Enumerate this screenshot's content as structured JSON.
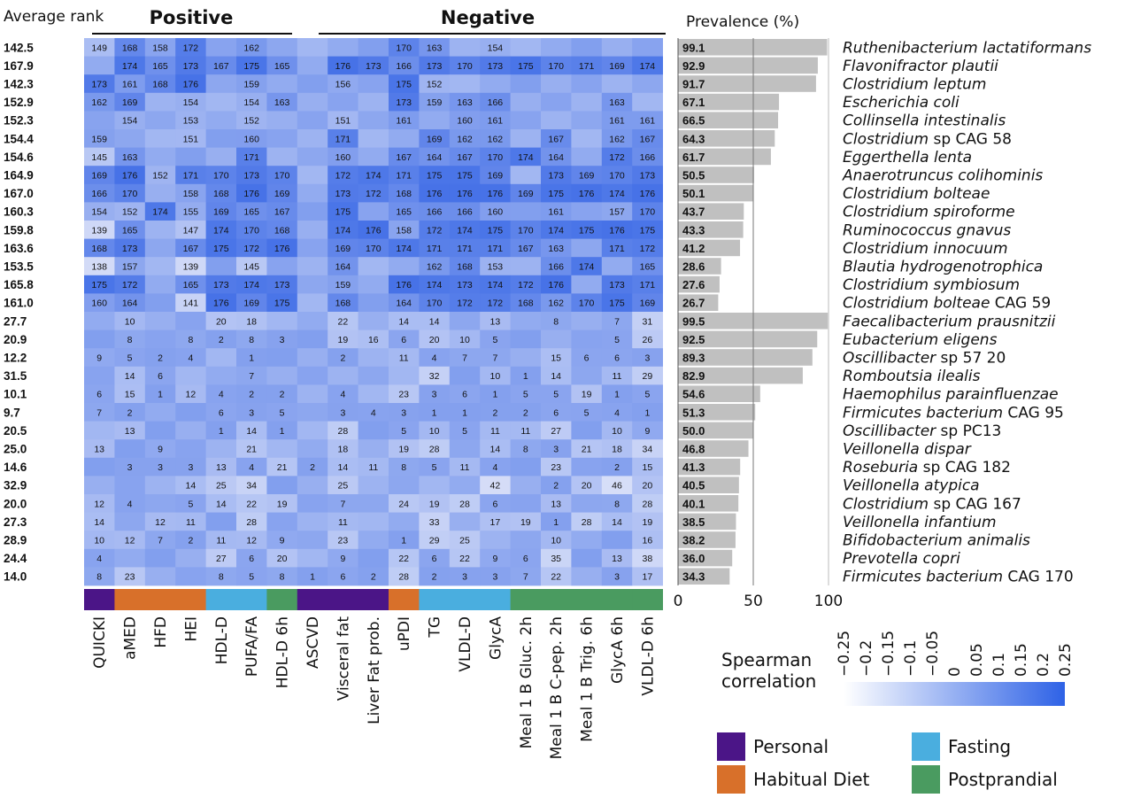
{
  "chart_data": {
    "type": "heatmap",
    "labels": {
      "average_rank": "Average rank",
      "positive": "Positive",
      "negative": "Negative",
      "prevalence": "Prevalence (%)",
      "colorbar_title_1": "Spearman",
      "colorbar_title_2": "correlation"
    },
    "columns": [
      "QUICKI",
      "aMED",
      "HFD",
      "HEI",
      "HDL-D",
      "PUFA/FA",
      "HDL-D 6h",
      "ASCVD",
      "Visceral fat",
      "Liver Fat prob.",
      "uPDI",
      "TG",
      "VLDL-D",
      "GlycA",
      "Meal 1 B Gluc. 2h",
      "Meal 1 B C-pep. 2h",
      "Meal 1 B Trig. 6h",
      "GlycA 6h",
      "VLDL-D 6h"
    ],
    "column_groups": [
      "Personal",
      "Habitual Diet",
      "Habitual Diet",
      "Habitual Diet",
      "Fasting",
      "Fasting",
      "Postprandial",
      "Personal",
      "Personal",
      "Personal",
      "Habitual Diet",
      "Fasting",
      "Fasting",
      "Fasting",
      "Postprandial",
      "Postprandial",
      "Postprandial",
      "Postprandial",
      "Postprandial"
    ],
    "group_legend": [
      {
        "name": "Personal",
        "color": "#4b1587"
      },
      {
        "name": "Habitual Diet",
        "color": "#d8702a"
      },
      {
        "name": "Fasting",
        "color": "#4aaedf"
      },
      {
        "name": "Postprandial",
        "color": "#4a9b60"
      }
    ],
    "rows": [
      {
        "species": "Ruthenibacterium lactatiformans",
        "rank": "142.5",
        "prevalence": 99.1,
        "values": [
          "149",
          "168",
          "158",
          "172",
          "",
          "162",
          "",
          "",
          "",
          "",
          "170",
          "163",
          "",
          "154",
          "",
          "",
          "",
          "",
          ""
        ]
      },
      {
        "species": "Flavonifractor plautii",
        "rank": "167.9",
        "prevalence": 92.9,
        "values": [
          "",
          "174",
          "165",
          "173",
          "167",
          "175",
          "165",
          "",
          "176",
          "173",
          "166",
          "173",
          "170",
          "173",
          "175",
          "170",
          "171",
          "169",
          "174"
        ]
      },
      {
        "species": "Clostridium leptum",
        "rank": "142.3",
        "prevalence": 91.7,
        "values": [
          "173",
          "161",
          "168",
          "176",
          "",
          "159",
          "",
          "",
          "156",
          "",
          "175",
          "152",
          "",
          "",
          "",
          "",
          "",
          "",
          ""
        ]
      },
      {
        "species": "Escherichia coli",
        "rank": "152.9",
        "prevalence": 67.1,
        "values": [
          "162",
          "169",
          "",
          "154",
          "",
          "154",
          "163",
          "",
          "",
          "",
          "173",
          "159",
          "163",
          "166",
          "",
          "",
          "",
          "163",
          ""
        ]
      },
      {
        "species": "Collinsella intestinalis",
        "rank": "152.3",
        "prevalence": 66.5,
        "values": [
          "",
          "154",
          "",
          "153",
          "",
          "152",
          "",
          "",
          "151",
          "",
          "161",
          "",
          "160",
          "161",
          "",
          "",
          "",
          "161",
          "161"
        ]
      },
      {
        "species": "Clostridium sp CAG 58",
        "rank": "154.4",
        "prevalence": 64.3,
        "values": [
          "159",
          "",
          "",
          "151",
          "",
          "160",
          "",
          "",
          "171",
          "",
          "",
          "169",
          "162",
          "162",
          "",
          "167",
          "",
          "162",
          "167"
        ]
      },
      {
        "species": "Eggerthella lenta",
        "rank": "154.6",
        "prevalence": 61.7,
        "values": [
          "145",
          "163",
          "",
          "",
          "",
          "171",
          "",
          "",
          "160",
          "",
          "167",
          "164",
          "167",
          "170",
          "174",
          "164",
          "",
          "172",
          "166"
        ]
      },
      {
        "species": "Anaerotruncus colihominis",
        "rank": "164.9",
        "prevalence": 50.5,
        "values": [
          "169",
          "176",
          "152",
          "171",
          "170",
          "173",
          "170",
          "",
          "172",
          "174",
          "171",
          "175",
          "175",
          "169",
          "",
          "173",
          "169",
          "170",
          "173"
        ]
      },
      {
        "species": "Clostridium bolteae",
        "rank": "167.0",
        "prevalence": 50.1,
        "values": [
          "166",
          "170",
          "",
          "158",
          "168",
          "176",
          "169",
          "",
          "173",
          "172",
          "168",
          "176",
          "176",
          "176",
          "169",
          "175",
          "176",
          "174",
          "176"
        ]
      },
      {
        "species": "Clostridium spiroforme",
        "rank": "160.3",
        "prevalence": 43.7,
        "values": [
          "154",
          "152",
          "174",
          "155",
          "169",
          "165",
          "167",
          "",
          "175",
          "",
          "165",
          "166",
          "166",
          "160",
          "",
          "161",
          "",
          "157",
          "170"
        ]
      },
      {
        "species": "Ruminococcus gnavus",
        "rank": "159.8",
        "prevalence": 43.3,
        "values": [
          "139",
          "165",
          "",
          "147",
          "174",
          "170",
          "168",
          "",
          "174",
          "176",
          "158",
          "172",
          "174",
          "175",
          "170",
          "174",
          "175",
          "176",
          "175"
        ]
      },
      {
        "species": "Clostridium innocuum",
        "rank": "163.6",
        "prevalence": 41.2,
        "values": [
          "168",
          "173",
          "",
          "167",
          "175",
          "172",
          "176",
          "",
          "169",
          "170",
          "174",
          "171",
          "171",
          "171",
          "167",
          "163",
          "",
          "171",
          "172"
        ]
      },
      {
        "species": "Blautia hydrogenotrophica",
        "rank": "153.5",
        "prevalence": 28.6,
        "values": [
          "138",
          "157",
          "",
          "139",
          "",
          "145",
          "",
          "",
          "164",
          "",
          "",
          "162",
          "168",
          "153",
          "",
          "166",
          "174",
          "",
          "165"
        ]
      },
      {
        "species": "Clostridium symbiosum",
        "rank": "165.8",
        "prevalence": 27.6,
        "values": [
          "175",
          "172",
          "",
          "165",
          "173",
          "174",
          "173",
          "",
          "159",
          "",
          "176",
          "174",
          "173",
          "174",
          "172",
          "176",
          "",
          "173",
          "171"
        ]
      },
      {
        "species": "Clostridium bolteae CAG 59",
        "rank": "161.0",
        "prevalence": 26.7,
        "values": [
          "160",
          "164",
          "",
          "141",
          "176",
          "169",
          "175",
          "",
          "168",
          "",
          "164",
          "170",
          "172",
          "172",
          "168",
          "162",
          "170",
          "175",
          "169"
        ]
      },
      {
        "species": "Faecalibacterium prausnitzii",
        "rank": "27.7",
        "prevalence": 99.5,
        "values": [
          "",
          "10",
          "",
          "",
          "20",
          "18",
          "",
          "",
          "22",
          "",
          "14",
          "14",
          "",
          "13",
          "",
          "8",
          "",
          "7",
          "31"
        ]
      },
      {
        "species": "Eubacterium eligens",
        "rank": "20.9",
        "prevalence": 92.5,
        "values": [
          "",
          "8",
          "",
          "8",
          "2",
          "8",
          "3",
          "",
          "19",
          "16",
          "6",
          "20",
          "10",
          "5",
          "",
          "",
          "",
          "5",
          "26"
        ]
      },
      {
        "species": "Oscillibacter sp 57 20",
        "rank": "12.2",
        "prevalence": 89.3,
        "values": [
          "9",
          "5",
          "2",
          "4",
          "",
          "1",
          "",
          "",
          "2",
          "",
          "11",
          "4",
          "7",
          "7",
          "",
          "15",
          "6",
          "6",
          "3"
        ]
      },
      {
        "species": "Romboutsia ilealis",
        "rank": "31.5",
        "prevalence": 82.9,
        "values": [
          "",
          "14",
          "6",
          "",
          "",
          "7",
          "",
          "",
          "",
          "",
          "",
          "32",
          "",
          "10",
          "1",
          "14",
          "",
          "11",
          "29"
        ]
      },
      {
        "species": "Haemophilus parainfluenzae",
        "rank": "10.1",
        "prevalence": 54.6,
        "values": [
          "6",
          "15",
          "1",
          "12",
          "4",
          "2",
          "2",
          "",
          "4",
          "",
          "23",
          "3",
          "6",
          "1",
          "5",
          "5",
          "19",
          "1",
          "5"
        ]
      },
      {
        "species": "Firmicutes bacterium CAG 95",
        "rank": "9.7",
        "prevalence": 51.3,
        "values": [
          "7",
          "2",
          "",
          "",
          "6",
          "3",
          "5",
          "",
          "3",
          "4",
          "3",
          "1",
          "1",
          "2",
          "2",
          "6",
          "5",
          "4",
          "1"
        ]
      },
      {
        "species": "Oscillibacter sp PC13",
        "rank": "20.5",
        "prevalence": 50.0,
        "values": [
          "",
          "13",
          "",
          "",
          "1",
          "14",
          "1",
          "",
          "28",
          "",
          "5",
          "10",
          "5",
          "11",
          "11",
          "27",
          "",
          "10",
          "9"
        ]
      },
      {
        "species": "Veillonella dispar",
        "rank": "25.0",
        "prevalence": 46.8,
        "values": [
          "13",
          "",
          "9",
          "",
          "",
          "21",
          "",
          "",
          "18",
          "",
          "19",
          "28",
          "",
          "14",
          "8",
          "3",
          "21",
          "18",
          "34"
        ]
      },
      {
        "species": "Roseburia sp CAG 182",
        "rank": "14.6",
        "prevalence": 41.3,
        "values": [
          "",
          "3",
          "3",
          "3",
          "13",
          "4",
          "21",
          "2",
          "14",
          "11",
          "8",
          "5",
          "11",
          "4",
          "",
          "23",
          "",
          "2",
          "15"
        ]
      },
      {
        "species": "Veillonella atypica",
        "rank": "32.9",
        "prevalence": 40.5,
        "values": [
          "",
          "",
          "",
          "14",
          "25",
          "34",
          "",
          "",
          "25",
          "",
          "",
          "",
          "",
          "42",
          "",
          "2",
          "20",
          "46",
          "20"
        ]
      },
      {
        "species": "Clostridium sp CAG 167",
        "rank": "20.0",
        "prevalence": 40.1,
        "values": [
          "12",
          "4",
          "",
          "5",
          "14",
          "22",
          "19",
          "",
          "7",
          "",
          "24",
          "19",
          "28",
          "6",
          "",
          "13",
          "",
          "8",
          "28"
        ]
      },
      {
        "species": "Veillonella infantium",
        "rank": "27.3",
        "prevalence": 38.5,
        "values": [
          "14",
          "",
          "12",
          "11",
          "",
          "28",
          "",
          "",
          "11",
          "",
          "",
          "33",
          "",
          "17",
          "19",
          "1",
          "28",
          "14",
          "19"
        ]
      },
      {
        "species": "Bifidobacterium animalis",
        "rank": "28.9",
        "prevalence": 38.2,
        "values": [
          "10",
          "12",
          "7",
          "2",
          "11",
          "12",
          "9",
          "",
          "23",
          "",
          "1",
          "29",
          "25",
          "",
          "",
          "10",
          "",
          "",
          "16"
        ]
      },
      {
        "species": "Prevotella copri",
        "rank": "24.4",
        "prevalence": 36.0,
        "values": [
          "4",
          "",
          "",
          "",
          "27",
          "6",
          "20",
          "",
          "9",
          "",
          "22",
          "6",
          "22",
          "9",
          "6",
          "35",
          "",
          "13",
          "38"
        ]
      },
      {
        "species": "Firmicutes bacterium CAG 170",
        "rank": "14.0",
        "prevalence": 34.3,
        "values": [
          "8",
          "23",
          "",
          "",
          "8",
          "5",
          "8",
          "1",
          "6",
          "2",
          "28",
          "2",
          "3",
          "3",
          "7",
          "22",
          "",
          "3",
          "17"
        ]
      }
    ],
    "prevalence_axis": {
      "ticks": [
        "0",
        "50",
        "100"
      ],
      "range": [
        0,
        100
      ]
    },
    "colorbar": {
      "ticks": [
        "−0.25",
        "−0.2",
        "−0.15",
        "−0.1",
        "−0.05",
        "0",
        "0.05",
        "0.1",
        "0.15",
        "0.2",
        "0.25"
      ],
      "range": [
        -0.25,
        0.25
      ],
      "colors": [
        "#ffffff",
        "#2e62e6"
      ]
    },
    "colors": {
      "cell_high": "#3c6ae6",
      "cell_low": "#ffffff",
      "prevalence_bar": "#c0c0c0"
    }
  }
}
